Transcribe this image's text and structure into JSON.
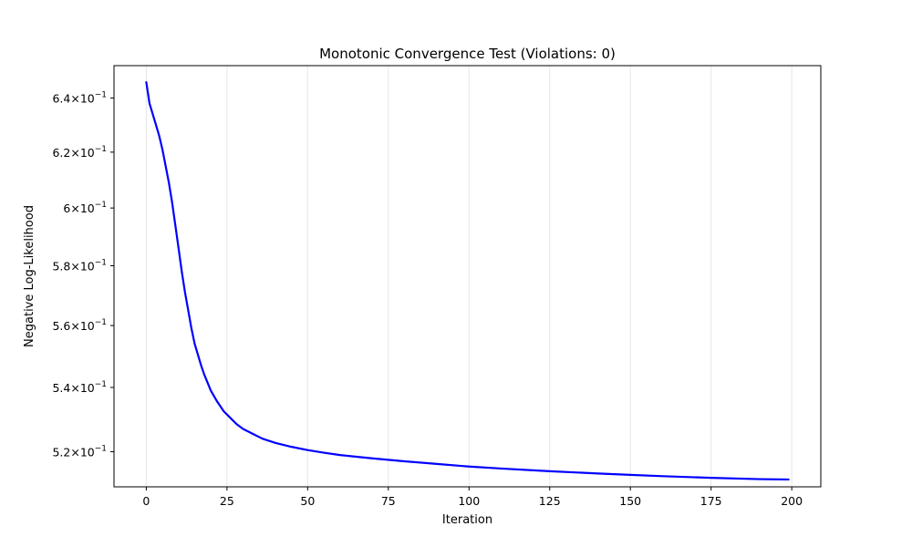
{
  "colors": {
    "line": "#0000ff",
    "grid": "#e6e6e6",
    "axis": "#000000"
  },
  "chart_data": {
    "type": "line",
    "title": "Monotonic Convergence Test (Violations: 0)",
    "xlabel": "Iteration",
    "ylabel": "Negative Log-Likelihood",
    "xlim": [
      -10,
      209
    ],
    "ylim": [
      0.5094,
      0.6523
    ],
    "yscale": "log",
    "grid": {
      "x": true,
      "y": false
    },
    "legend": "none",
    "x_ticks": [
      {
        "value": 0,
        "label": "0"
      },
      {
        "value": 25,
        "label": "25"
      },
      {
        "value": 50,
        "label": "50"
      },
      {
        "value": 75,
        "label": "75"
      },
      {
        "value": 100,
        "label": "100"
      },
      {
        "value": 125,
        "label": "125"
      },
      {
        "value": 150,
        "label": "150"
      },
      {
        "value": 175,
        "label": "175"
      },
      {
        "value": 200,
        "label": "200"
      }
    ],
    "y_ticks": [
      {
        "value": 0.52,
        "mantissa": "5.2",
        "base": "10",
        "exponent": "−1"
      },
      {
        "value": 0.54,
        "mantissa": "5.4",
        "base": "10",
        "exponent": "−1"
      },
      {
        "value": 0.56,
        "mantissa": "5.6",
        "base": "10",
        "exponent": "−1"
      },
      {
        "value": 0.58,
        "mantissa": "5.8",
        "base": "10",
        "exponent": "−1"
      },
      {
        "value": 0.6,
        "mantissa": "6",
        "base": "10",
        "exponent": "−1"
      },
      {
        "value": 0.62,
        "mantissa": "6.2",
        "base": "10",
        "exponent": "−1"
      },
      {
        "value": 0.64,
        "mantissa": "6.4",
        "base": "10",
        "exponent": "−1"
      }
    ],
    "series": [
      {
        "color": "#0000ff",
        "x": [
          0,
          1,
          2,
          3,
          4,
          5,
          6,
          7,
          8,
          9,
          10,
          11,
          12,
          13,
          14,
          15,
          16,
          17,
          18,
          19,
          20,
          22,
          24,
          26,
          28,
          30,
          33,
          36,
          40,
          45,
          50,
          55,
          60,
          70,
          80,
          90,
          100,
          110,
          125,
          140,
          150,
          160,
          175,
          190,
          199
        ],
        "y": [
          0.646,
          0.638,
          0.634,
          0.63,
          0.626,
          0.621,
          0.615,
          0.609,
          0.602,
          0.594,
          0.586,
          0.578,
          0.571,
          0.565,
          0.559,
          0.554,
          0.5505,
          0.547,
          0.544,
          0.5415,
          0.539,
          0.5355,
          0.5325,
          0.5305,
          0.5285,
          0.527,
          0.5255,
          0.524,
          0.5227,
          0.5215,
          0.5205,
          0.5197,
          0.519,
          0.518,
          0.5171,
          0.5163,
          0.5155,
          0.5149,
          0.5141,
          0.5134,
          0.513,
          0.5126,
          0.5121,
          0.5117,
          0.5116
        ]
      }
    ]
  }
}
